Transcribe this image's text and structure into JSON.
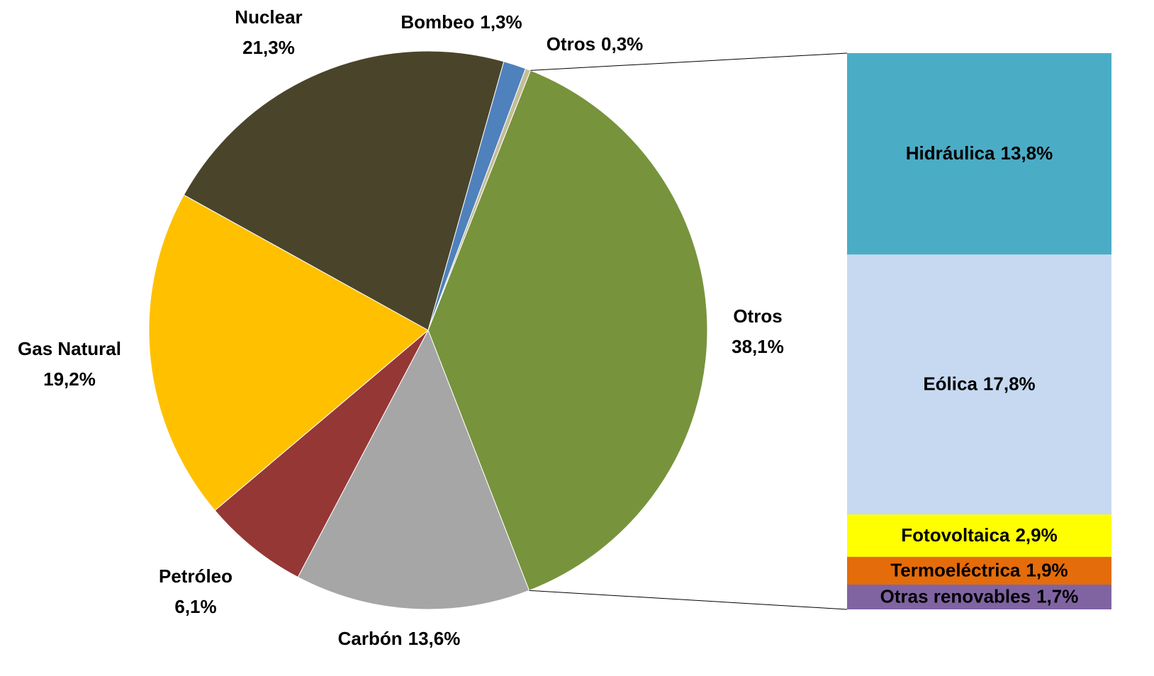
{
  "chart_data": {
    "type": "pie-of-bar",
    "categories": [
      "Otros",
      "Carbón",
      "Petróleo",
      "Gas Natural",
      "Nuclear",
      "Bombeo",
      "Otros"
    ],
    "values": [
      38.1,
      13.6,
      6.1,
      19.2,
      21.3,
      1.3,
      0.3
    ],
    "value_labels": [
      "38,1%",
      "13,6%",
      "6,1%",
      "19,2%",
      "21,3%",
      "1,3%",
      "0,3%"
    ],
    "colors": [
      "#77933c",
      "#a6a6a6",
      "#953735",
      "#ffc000",
      "#4a452a",
      "#4f81bd",
      "#c4bd97"
    ],
    "bar": {
      "categories": [
        "Hidráulica",
        "Eólica",
        "Fotovoltaica",
        "Termoeléctrica",
        "Otras renovables"
      ],
      "values": [
        13.8,
        17.8,
        2.9,
        1.9,
        1.7
      ],
      "value_labels": [
        "13,8%",
        "17,8%",
        "2,9%",
        "1,9%",
        "1,7%"
      ],
      "colors": [
        "#4bacc6",
        "#c6d9f1",
        "#ffff00",
        "#e46c0a",
        "#8064a2"
      ]
    }
  }
}
